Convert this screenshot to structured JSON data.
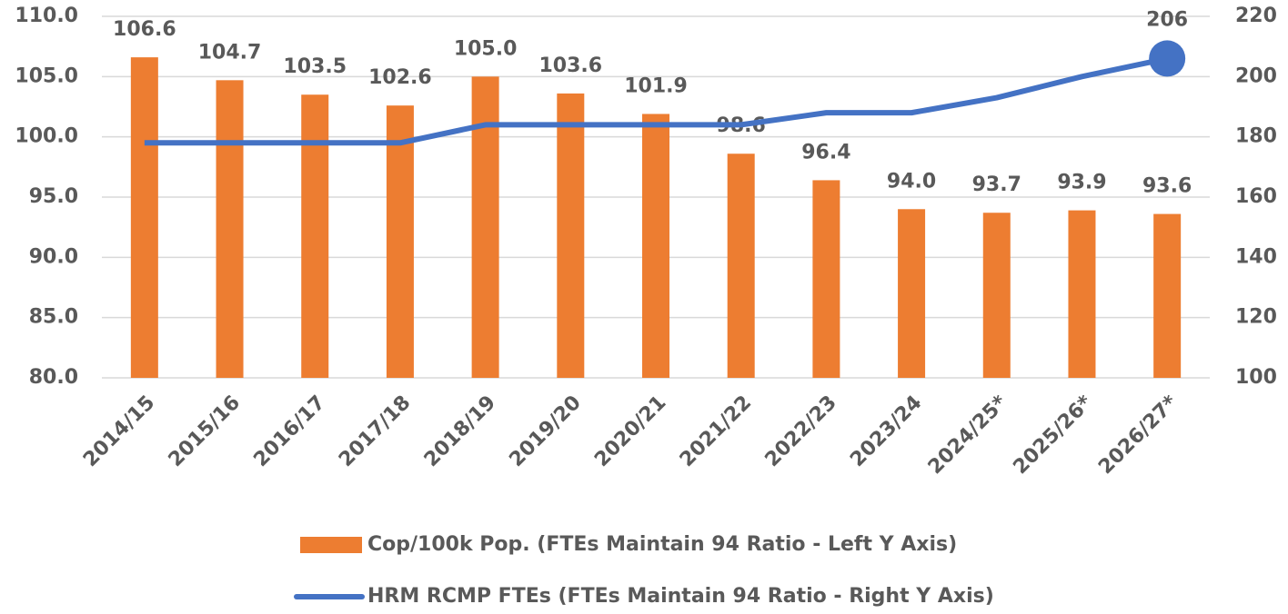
{
  "chart_data": {
    "type": "bar_line",
    "categories": [
      "2014/15",
      "2015/16",
      "2016/17",
      "2017/18",
      "2018/19",
      "2019/20",
      "2020/21",
      "2021/22",
      "2022/23",
      "2023/24",
      "2024/25*",
      "2025/26*",
      "2026/27*"
    ],
    "series": [
      {
        "name": "Cop/100k Pop. (FTEs Maintain 94 Ratio - Left Y Axis)",
        "type": "bar",
        "color": "#ed7d31",
        "values": [
          106.6,
          104.7,
          103.5,
          102.6,
          105.0,
          103.6,
          101.9,
          98.6,
          96.4,
          94.0,
          93.7,
          93.9,
          93.6
        ],
        "value_labels": [
          "106.6",
          "104.7",
          "103.5",
          "102.6",
          "105.0",
          "103.6",
          "101.9",
          "98.6",
          "96.4",
          "94.0",
          "93.7",
          "93.9",
          "93.6"
        ]
      },
      {
        "name": "HRM RCMP FTEs (FTEs Maintain 94 Ratio - Right Y Axis)",
        "type": "line",
        "axis": "y2",
        "color": "#4472c4",
        "values": [
          178,
          178,
          178,
          178,
          184,
          184,
          184,
          184,
          188,
          188,
          193,
          200,
          206
        ]
      }
    ],
    "ylim": [
      80,
      110
    ],
    "yticks": [
      {
        "value": 80,
        "label": "80.0"
      },
      {
        "value": 85,
        "label": "85.0"
      },
      {
        "value": 90,
        "label": "90.0"
      },
      {
        "value": 95,
        "label": "95.0"
      },
      {
        "value": 100,
        "label": "100.0"
      },
      {
        "value": 105,
        "label": "105.0"
      },
      {
        "value": 110,
        "label": "110.0"
      }
    ],
    "y2lim": [
      100,
      220
    ],
    "y2ticks": [
      100,
      120,
      140,
      160,
      180,
      200,
      220
    ],
    "grid": true,
    "legend": "bottom"
  }
}
